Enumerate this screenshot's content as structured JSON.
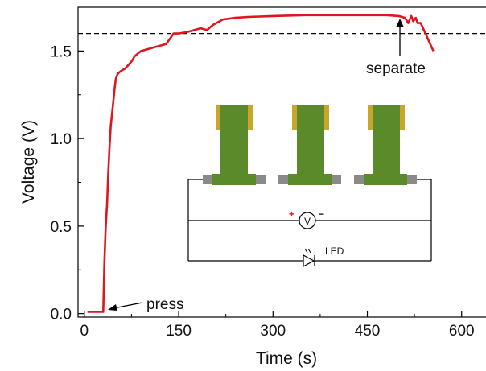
{
  "chart_data": {
    "type": "line",
    "xlabel": "Time (s)",
    "ylabel": "Voltage (V)",
    "xlim": [
      -10,
      640
    ],
    "ylim": [
      -0.02,
      1.75
    ],
    "x_ticks": [
      0,
      150,
      300,
      450,
      600
    ],
    "y_ticks": [
      0.0,
      0.5,
      1.0,
      1.5
    ],
    "x_tick_labels": [
      "0",
      "150",
      "300",
      "450",
      "600"
    ],
    "y_tick_labels": [
      "0.0",
      "0.5",
      "1.0",
      "1.5"
    ],
    "grid": false,
    "reference_line": {
      "y": 1.6,
      "style": "dashed"
    },
    "series": [
      {
        "color": "#e0161e",
        "x": [
          5,
          15,
          25,
          30,
          32,
          34,
          36,
          38,
          40,
          42,
          44,
          46,
          48,
          50,
          53,
          56,
          60,
          65,
          70,
          75,
          80,
          90,
          100,
          110,
          120,
          130,
          138,
          142,
          150,
          165,
          175,
          185,
          195,
          205,
          210,
          220,
          240,
          260,
          300,
          350,
          400,
          450,
          480,
          500,
          510,
          515,
          520,
          523,
          527,
          530,
          535,
          540,
          545,
          550,
          555
        ],
        "y": [
          0.01,
          0.01,
          0.01,
          0.01,
          0.3,
          0.5,
          0.62,
          0.8,
          0.95,
          1.07,
          1.14,
          1.21,
          1.28,
          1.34,
          1.37,
          1.38,
          1.39,
          1.4,
          1.42,
          1.44,
          1.47,
          1.5,
          1.51,
          1.52,
          1.53,
          1.54,
          1.58,
          1.6,
          1.6,
          1.61,
          1.62,
          1.63,
          1.62,
          1.65,
          1.66,
          1.68,
          1.69,
          1.695,
          1.7,
          1.705,
          1.705,
          1.705,
          1.705,
          1.7,
          1.69,
          1.66,
          1.7,
          1.67,
          1.69,
          1.66,
          1.66,
          1.62,
          1.58,
          1.54,
          1.5
        ]
      }
    ],
    "annotations": [
      {
        "text": "press",
        "x": 30,
        "y": 0.01
      },
      {
        "text": "separate",
        "x": 505,
        "y": 1.705
      }
    ]
  },
  "inset": {
    "voltmeter_symbol": "V",
    "plus_sign": "+",
    "minus_sign": "−",
    "led_label": "LED",
    "colors": {
      "pillar": "#5a8a2a",
      "cap": "#c9a52c",
      "contact": "#8a8a8a",
      "plus": "#e0161e"
    }
  }
}
